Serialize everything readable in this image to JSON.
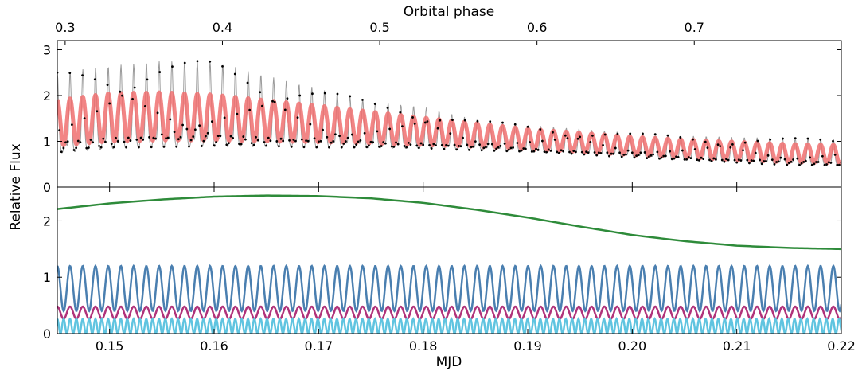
{
  "chart_data": {
    "type": "line",
    "top_axis": {
      "label": "Orbital phase",
      "ticks": [
        0.3,
        0.4,
        0.5,
        0.6,
        0.7
      ],
      "tick_labels": [
        "0.3",
        "0.4",
        "0.5",
        "0.6",
        "0.7"
      ],
      "lim": [
        0.295,
        0.7935
      ]
    },
    "x_axis": {
      "label": "MJD",
      "ticks": [
        0.15,
        0.16,
        0.17,
        0.18,
        0.19,
        0.2,
        0.21,
        0.22
      ],
      "tick_labels": [
        "0.15",
        "0.16",
        "0.17",
        "0.18",
        "0.19",
        "0.20",
        "0.21",
        "0.22"
      ],
      "lim": [
        0.145,
        0.22
      ]
    },
    "ylabel": "Relative Flux",
    "panels": [
      {
        "name": "top",
        "ylim": [
          0,
          3.2
        ],
        "yticks": [
          0,
          1,
          2,
          3
        ],
        "ytick_labels": [
          "0",
          "1",
          "2",
          "3"
        ],
        "series": [
          {
            "role": "observed",
            "color": "#000000",
            "line_color": "#9a9a9a",
            "model": {
              "kind": "pulsation",
              "x0": 0.145,
              "period": 0.001217,
              "shape": "spike"
            },
            "x": [
              0.145,
              0.15,
              0.155,
              0.16,
              0.165,
              0.17,
              0.175,
              0.18,
              0.185,
              0.19,
              0.195,
              0.2,
              0.205,
              0.21,
              0.215,
              0.22
            ],
            "baseline": [
              0.85,
              0.95,
              1.0,
              1.0,
              0.98,
              0.95,
              0.92,
              0.9,
              0.85,
              0.8,
              0.75,
              0.68,
              0.62,
              0.57,
              0.52,
              0.5
            ],
            "amplitude": [
              1.65,
              1.7,
              1.75,
              1.75,
              1.45,
              1.2,
              0.95,
              0.85,
              0.62,
              0.55,
              0.52,
              0.5,
              0.5,
              0.52,
              0.55,
              0.55
            ],
            "peaks_max": 2.96
          },
          {
            "role": "model",
            "color": "#f07070",
            "model": {
              "kind": "pulsation",
              "x0": 0.145,
              "period": 0.001217,
              "shape": "smooth"
            },
            "x": [
              0.145,
              0.15,
              0.155,
              0.16,
              0.165,
              0.17,
              0.175,
              0.18,
              0.185,
              0.19,
              0.195,
              0.2,
              0.205,
              0.21,
              0.215,
              0.22
            ],
            "baseline": [
              0.9,
              1.0,
              1.02,
              1.02,
              1.0,
              0.98,
              0.95,
              0.92,
              0.88,
              0.82,
              0.77,
              0.7,
              0.64,
              0.59,
              0.54,
              0.52
            ],
            "amplitude": [
              1.0,
              1.05,
              1.05,
              1.0,
              0.9,
              0.8,
              0.7,
              0.6,
              0.52,
              0.45,
              0.42,
              0.4,
              0.4,
              0.4,
              0.4,
              0.4
            ]
          }
        ]
      },
      {
        "name": "bottom",
        "ylim": [
          0,
          2.6
        ],
        "yticks": [
          0,
          1,
          2
        ],
        "ytick_labels": [
          "0",
          "1",
          "2"
        ],
        "series": [
          {
            "role": "orbital",
            "color": "#2e8b3a",
            "x": [
              0.145,
              0.15,
              0.155,
              0.16,
              0.165,
              0.17,
              0.175,
              0.18,
              0.185,
              0.19,
              0.195,
              0.2,
              0.205,
              0.21,
              0.215,
              0.22
            ],
            "y": [
              2.21,
              2.31,
              2.38,
              2.43,
              2.45,
              2.44,
              2.4,
              2.32,
              2.2,
              2.06,
              1.9,
              1.75,
              1.64,
              1.56,
              1.52,
              1.5
            ]
          },
          {
            "role": "harmonic",
            "color": "#4a7fb0",
            "model": {
              "kind": "sinusoid",
              "x0": 0.145,
              "period": 0.001217,
              "mean": 0.8,
              "amplitude": 0.4
            }
          },
          {
            "role": "harmonic",
            "color": "#b0327a",
            "model": {
              "kind": "sinusoid",
              "x0": 0.145,
              "period": 0.001217,
              "mean": 0.37,
              "amplitude": 0.11
            }
          },
          {
            "role": "harmonic",
            "color": "#5fc4e0",
            "model": {
              "kind": "sinusoid",
              "x0": 0.145,
              "period": 0.000608,
              "mean": 0.13,
              "amplitude": 0.13
            }
          }
        ]
      }
    ]
  }
}
